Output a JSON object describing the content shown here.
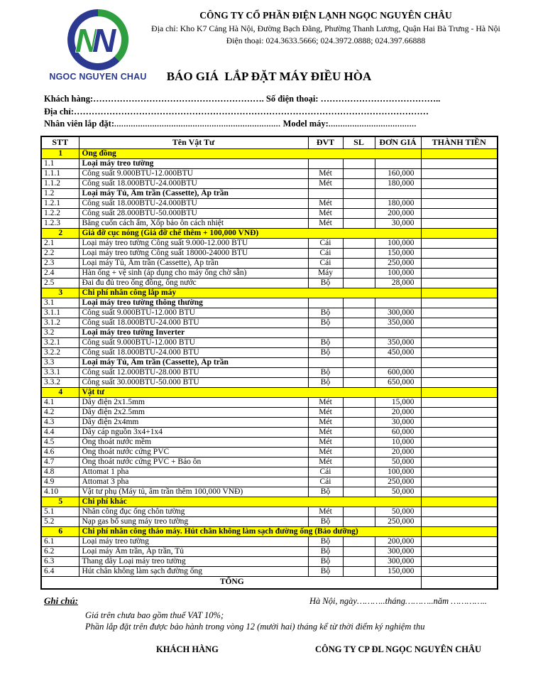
{
  "colors": {
    "section_highlight": "#ffff00",
    "logo_blue": "#2b3990",
    "logo_green": "#2f9e41"
  },
  "header": {
    "logo_text": "NGOC NGUYEN CHAU",
    "company_name": "CÔNG TY CỔ PHẦN ĐIỆN LẠNH NGỌC NGUYÊN CHÂU",
    "address": "Địa chỉ: Kho K7 Cảng Hà Nội, Đường Bạch Đằng, Phường Thanh Lương, Quận Hai Bà Trưng - Hà Nội",
    "phone": "Điện thoại: 024.3633.5666; 024.3972.0888; 024.397.66888",
    "title": "BÁO GIÁ  LẮP ĐẶT MÁY ĐIỀU HÒA"
  },
  "form": {
    "line1": {
      "label1": "Khách hàng:",
      "dots1": "………………………………………………….",
      "label2": " Số điện thoại: ",
      "dots2": "………………………………….."
    },
    "line2": {
      "label1": "Địa chỉ:",
      "dots1": "…………………………………………………………………………………………………………"
    },
    "line3": {
      "label1": "Nhân viên lắp đặt:",
      "dots1": "......................................................................",
      "label2": " Model máy:",
      "dots2": "....................................."
    }
  },
  "table": {
    "columns": [
      "STT",
      "Tên Vật Tư",
      "ĐVT",
      "SL",
      "ĐƠN GIÁ",
      "THÀNH TIỀN"
    ],
    "total_label": "TỔNG",
    "rows": [
      {
        "type": "section",
        "stt": "1",
        "name": "Ống đồng"
      },
      {
        "type": "subsection",
        "stt": "1.1",
        "name": "Loại máy treo tường",
        "unit": "",
        "qty": "",
        "price": "",
        "total": ""
      },
      {
        "type": "item",
        "stt": "1.1.1",
        "name": "Công suất 9.000BTU-12.000BTU",
        "unit": "Mét",
        "qty": "",
        "price": "160,000",
        "total": ""
      },
      {
        "type": "item",
        "stt": "1.1.2",
        "name": "Công suất 18.000BTU-24.000BTU",
        "unit": "Mét",
        "qty": "",
        "price": "180,000",
        "total": ""
      },
      {
        "type": "subsection",
        "stt": "1.2",
        "name": "Loại máy Tủ, Âm trần (Cassette), Áp trần",
        "unit": "",
        "qty": "",
        "price": "",
        "total": ""
      },
      {
        "type": "item",
        "stt": "1.2.1",
        "name": "Công suất 18.000BTU-24.000BTU",
        "unit": "Mét",
        "qty": "",
        "price": "180,000",
        "total": ""
      },
      {
        "type": "item",
        "stt": "1.2.2",
        "name": "Công suất 28.000BTU-50.000BTU",
        "unit": "Mét",
        "qty": "",
        "price": "200,000",
        "total": ""
      },
      {
        "type": "item",
        "stt": "1.2.3",
        "name": "Băng cuốn cách ẩm, Xốp bảo ôn cách nhiệt",
        "unit": "Mét",
        "qty": "",
        "price": "30,000",
        "total": ""
      },
      {
        "type": "section",
        "stt": "2",
        "name": "Giá đỡ cục nóng (Giá đỡ chế thêm + 100,000 VNĐ)"
      },
      {
        "type": "item",
        "stt": "2.1",
        "name": "Loại máy treo tường Công suất 9.000-12.000 BTU",
        "unit": "Cái",
        "qty": "",
        "price": "100,000",
        "total": ""
      },
      {
        "type": "item",
        "stt": "2.2",
        "name": "Loại máy treo tường Công suất 18000-24000 BTU",
        "unit": "Cái",
        "qty": "",
        "price": "150,000",
        "total": ""
      },
      {
        "type": "item",
        "stt": "2.3",
        "name": "Loại máy Tủ, Âm trần (Cassette), Áp trần",
        "unit": "Cái",
        "qty": "",
        "price": "250,000",
        "total": ""
      },
      {
        "type": "item",
        "stt": "2.4",
        "name": "Hàn ống + vệ sinh (áp dụng cho máy ống chờ sẵn)",
        "unit": "Máy",
        "qty": "",
        "price": "100,000",
        "total": ""
      },
      {
        "type": "item",
        "stt": "2.5",
        "name": "Đai đu đủ treo ống đồng, ống nước",
        "unit": "Bộ",
        "qty": "",
        "price": "28,000",
        "total": ""
      },
      {
        "type": "section",
        "stt": "3",
        "name": "Chi phí nhân công lắp máy"
      },
      {
        "type": "subsection",
        "stt": "3.1",
        "name": "Loại máy treo tường thông thường",
        "unit": "",
        "qty": "",
        "price": "",
        "total": ""
      },
      {
        "type": "item",
        "stt": "3.1.1",
        "name": "Công suất 9.000BTU-12.000 BTU",
        "unit": "Bộ",
        "qty": "",
        "price": "300,000",
        "total": ""
      },
      {
        "type": "item",
        "stt": "3.1.2",
        "name": "Công suất 18.000BTU-24.000 BTU",
        "unit": "Bộ",
        "qty": "",
        "price": "350,000",
        "total": ""
      },
      {
        "type": "subsection",
        "stt": "3.2",
        "name": "Loại máy treo tường Inverter",
        "unit": "",
        "qty": "",
        "price": "",
        "total": ""
      },
      {
        "type": "item",
        "stt": "3.2.1",
        "name": "Công suất 9.000BTU-12.000 BTU",
        "unit": "Bộ",
        "qty": "",
        "price": "350,000",
        "total": ""
      },
      {
        "type": "item",
        "stt": "3.2.2",
        "name": "Công suất 18.000BTU-24.000 BTU",
        "unit": "Bộ",
        "qty": "",
        "price": "450,000",
        "total": ""
      },
      {
        "type": "subsection",
        "stt": "3.3",
        "name": "Loại máy Tủ, Âm trần (Cassette), Áp trần",
        "unit": "",
        "qty": "",
        "price": "",
        "total": ""
      },
      {
        "type": "item",
        "stt": "3.3.1",
        "name": "Công suất 12.000BTU-28.000 BTU",
        "unit": "Bộ",
        "qty": "",
        "price": "600,000",
        "total": ""
      },
      {
        "type": "item",
        "stt": "3.3.2",
        "name": "Công suất 30.000BTU-50.000 BTU",
        "unit": "Bộ",
        "qty": "",
        "price": "650,000",
        "total": ""
      },
      {
        "type": "section",
        "stt": "4",
        "name": "Vật tư"
      },
      {
        "type": "item",
        "stt": "4.1",
        "name": "Dây điện 2x1.5mm",
        "unit": "Mét",
        "qty": "",
        "price": "15,000",
        "total": ""
      },
      {
        "type": "item",
        "stt": "4.2",
        "name": "Dây điện 2x2.5mm",
        "unit": "Mét",
        "qty": "",
        "price": "20,000",
        "total": ""
      },
      {
        "type": "item",
        "stt": "4.3",
        "name": "Dây điện 2x4mm",
        "unit": "Mét",
        "qty": "",
        "price": "30,000",
        "total": ""
      },
      {
        "type": "item",
        "stt": "4.4",
        "name": "Dây cáp nguồn 3x4+1x4",
        "unit": "Mét",
        "qty": "",
        "price": "60,000",
        "total": ""
      },
      {
        "type": "item",
        "stt": "4.5",
        "name": "Ống thoát nước mềm",
        "unit": "Mét",
        "qty": "",
        "price": "10,000",
        "total": ""
      },
      {
        "type": "item",
        "stt": "4.6",
        "name": "Ống thoát nước cứng PVC",
        "unit": "Mét",
        "qty": "",
        "price": "20,000",
        "total": ""
      },
      {
        "type": "item",
        "stt": "4.7",
        "name": "Ống thoát nước cứng PVC + Bảo ôn",
        "unit": "Mét",
        "qty": "",
        "price": "50,000",
        "total": ""
      },
      {
        "type": "item",
        "stt": "4.8",
        "name": "Attomat 1 pha",
        "unit": "Cái",
        "qty": "",
        "price": "100,000",
        "total": ""
      },
      {
        "type": "item",
        "stt": "4.9",
        "name": "Attomat 3 pha",
        "unit": "Cái",
        "qty": "",
        "price": "250,000",
        "total": ""
      },
      {
        "type": "item",
        "stt": "4.10",
        "name": "Vật tư phụ (Máy tủ, âm trần thêm 100,000 VNĐ)",
        "unit": "Bộ",
        "qty": "",
        "price": "50,000",
        "total": ""
      },
      {
        "type": "section",
        "stt": "5",
        "name": "Chi phí khác"
      },
      {
        "type": "item",
        "stt": "5.1",
        "name": "Nhân công đục ống chôn tường",
        "unit": "Mét",
        "qty": "",
        "price": "50,000",
        "total": ""
      },
      {
        "type": "item",
        "stt": "5.2",
        "name": "Nạp gas bổ sung máy treo tường",
        "unit": "Bộ",
        "qty": "",
        "price": "250,000",
        "total": ""
      },
      {
        "type": "section",
        "stt": "6",
        "name": "Chi phí nhân công tháo máy. Hút chân không làm sạch đường ống (Bảo dưỡng)"
      },
      {
        "type": "item",
        "stt": "6.1",
        "name": "Loại máy treo tường",
        "unit": "Bộ",
        "qty": "",
        "price": "200,000",
        "total": ""
      },
      {
        "type": "item",
        "stt": "6.2",
        "name": "Loại máy Âm trần, Áp trần, Tủ",
        "unit": "Bộ",
        "qty": "",
        "price": "300,000",
        "total": ""
      },
      {
        "type": "item",
        "stt": "6.3",
        "name": "Thang dây Loại máy treo tường",
        "unit": "Bộ",
        "qty": "",
        "price": "300,000",
        "total": ""
      },
      {
        "type": "item",
        "stt": "6.4",
        "name": "Hút chân không làm sạch đường ống",
        "unit": "Bộ",
        "qty": "",
        "price": "150,000",
        "total": ""
      },
      {
        "type": "total"
      }
    ]
  },
  "footer": {
    "note_heading": "Ghi chú:",
    "date_line": "Hà Nội, ngày………..tháng………..năm …………..",
    "note1": "Giá trên chưa bao gồm thuế VAT 10%;",
    "note2": "Phần lắp đặt trên được bảo hành trong vòng 12 (mười hai) tháng kể từ thời điểm ký nghiệm thu",
    "signature_left": "KHÁCH HÀNG",
    "signature_right": "CÔNG TY CP ĐL NGỌC NGUYÊN CHÂU"
  }
}
